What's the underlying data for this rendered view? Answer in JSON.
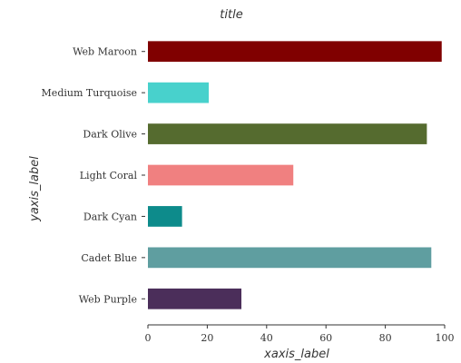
{
  "chart_data": {
    "type": "bar",
    "orientation": "horizontal",
    "title": "title",
    "xlabel": "xaxis_label",
    "ylabel": "yaxis_label",
    "xlim": [
      0,
      100
    ],
    "xticks": [
      0,
      20,
      40,
      60,
      80,
      100
    ],
    "grid": false,
    "categories": [
      "Web Purple",
      "Cadet Blue",
      "Dark Cyan",
      "Light Coral",
      "Dark Olive",
      "Medium Turquoise",
      "Web Maroon"
    ],
    "values": [
      31.5,
      95.5,
      11.5,
      49,
      94,
      20.5,
      99
    ],
    "colors": [
      "#4b2e5a",
      "#5f9ea0",
      "#0d8b8b",
      "#f08080",
      "#556b2f",
      "#48d1cc",
      "#800000"
    ]
  }
}
